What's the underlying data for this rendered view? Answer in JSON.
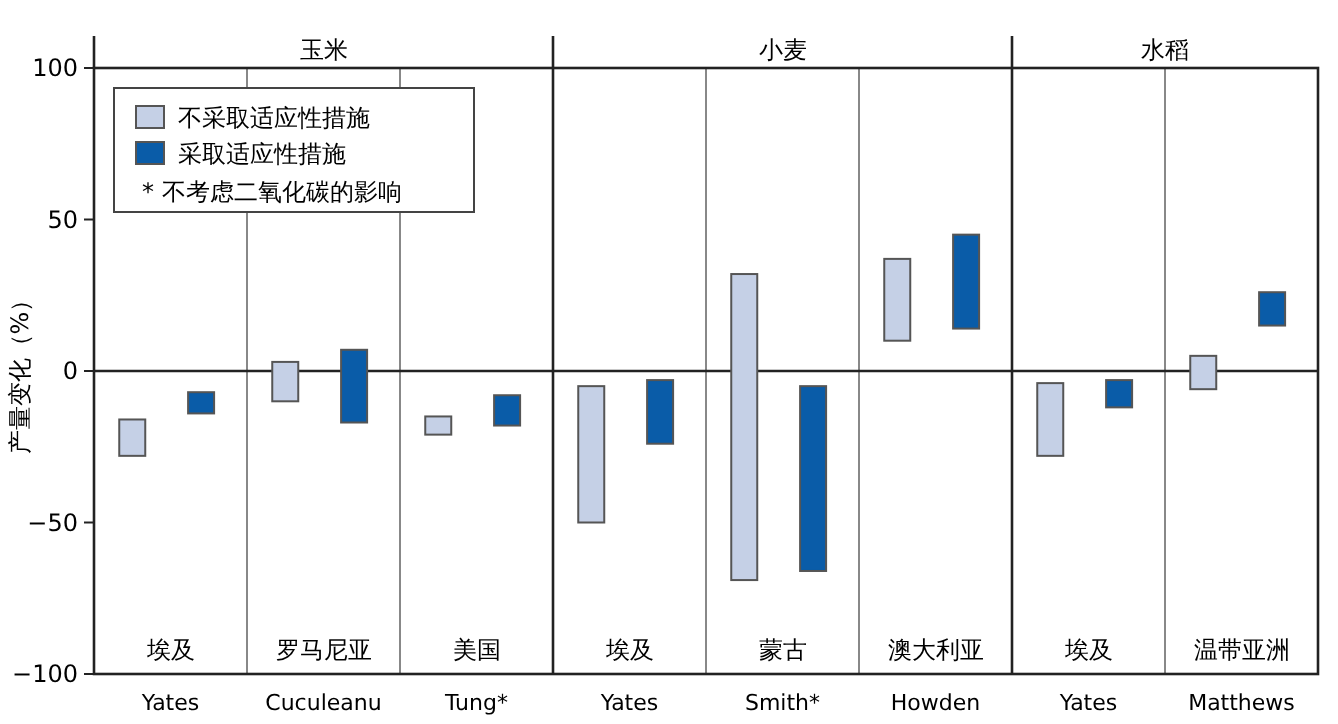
{
  "chart_data": {
    "type": "bar",
    "ylabel": "产量变化（%）",
    "categories": [
      "Yates",
      "Cuculeanu",
      "Tung*",
      "Yates",
      "Smith*",
      "Howden",
      "Yates",
      "Matthews"
    ],
    "series": [
      {
        "name": "不采取适应性措施",
        "color": "#c5d0e6",
        "base": [
          -28,
          -10,
          -21,
          -50,
          -69,
          10,
          -28,
          -6
        ],
        "values": [
          12,
          13,
          6,
          45,
          101,
          27,
          24,
          11
        ]
      },
      {
        "name": "采取适应性措施",
        "color": "#0a5ca8",
        "base": [
          -14,
          -17,
          -18,
          -24,
          -66,
          14,
          -12,
          15
        ],
        "values": [
          7,
          24,
          10,
          21,
          61,
          31,
          9,
          11
        ]
      }
    ],
    "ylim": [
      -100,
      100
    ],
    "yticks": [
      -100,
      -50,
      0,
      50,
      100
    ],
    "ref_lines": [
      {
        "axis": "y",
        "value": 0,
        "color": "#222222"
      }
    ],
    "legend": "top left",
    "annotations": [
      "玉米",
      "小麦",
      "水稻",
      "埃及",
      "罗马尼亚",
      "美国",
      "埃及",
      "蒙古",
      "澳大利亚",
      "埃及",
      "温带亚洲",
      "*  不考虑二氧化碳的影响"
    ]
  }
}
